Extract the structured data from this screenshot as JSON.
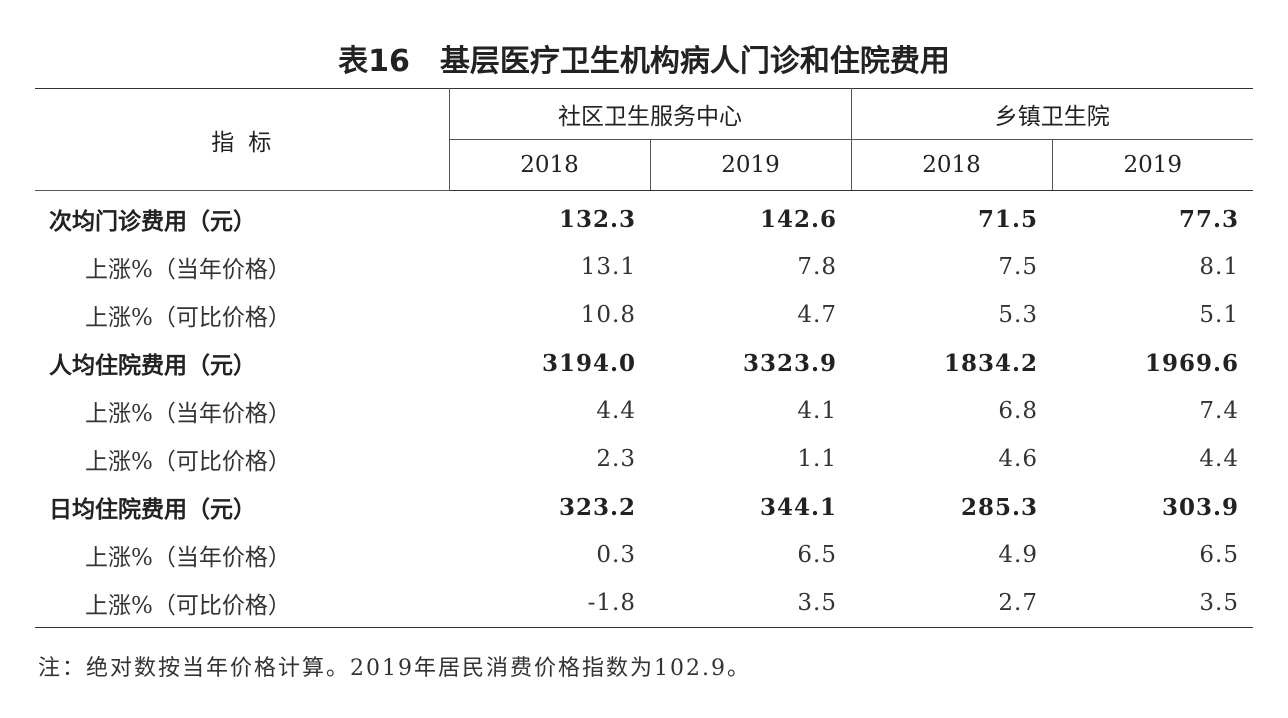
{
  "title": {
    "table_no": "表16",
    "text": "基层医疗卫生机构病人门诊和住院费用"
  },
  "header": {
    "indicator": "指标",
    "groups": [
      "社区卫生服务中心",
      "乡镇卫生院"
    ],
    "years": [
      "2018",
      "2019",
      "2018",
      "2019"
    ]
  },
  "rows": [
    {
      "label": "次均门诊费用（元）",
      "type": "main",
      "values": [
        "132.3",
        "142.6",
        "71.5",
        "77.3"
      ]
    },
    {
      "label": "上涨%（当年价格）",
      "type": "sub",
      "values": [
        "13.1",
        "7.8",
        "7.5",
        "8.1"
      ]
    },
    {
      "label": "上涨%（可比价格）",
      "type": "sub",
      "values": [
        "10.8",
        "4.7",
        "5.3",
        "5.1"
      ]
    },
    {
      "label": "人均住院费用（元）",
      "type": "main",
      "values": [
        "3194.0",
        "3323.9",
        "1834.2",
        "1969.6"
      ]
    },
    {
      "label": "上涨%（当年价格）",
      "type": "sub",
      "values": [
        "4.4",
        "4.1",
        "6.8",
        "7.4"
      ]
    },
    {
      "label": "上涨%（可比价格）",
      "type": "sub",
      "values": [
        "2.3",
        "1.1",
        "4.6",
        "4.4"
      ]
    },
    {
      "label": "日均住院费用（元）",
      "type": "main",
      "values": [
        "323.2",
        "344.1",
        "285.3",
        "303.9"
      ]
    },
    {
      "label": "上涨%（当年价格）",
      "type": "sub",
      "values": [
        "0.3",
        "6.5",
        "4.9",
        "6.5"
      ]
    },
    {
      "label": "上涨%（可比价格）",
      "type": "sub",
      "values": [
        "-1.8",
        "3.5",
        "2.7",
        "3.5"
      ]
    }
  ],
  "note": "注：绝对数按当年价格计算。2019年居民消费价格指数为102.9。"
}
